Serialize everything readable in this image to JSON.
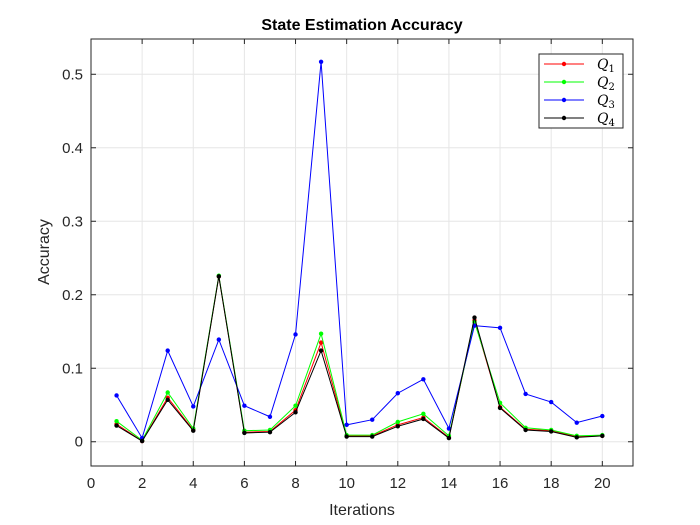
{
  "chart_data": {
    "type": "line",
    "title": "State Estimation Accuracy",
    "xlabel": "Iterations",
    "ylabel": "Accuracy",
    "xlim": [
      0,
      21.2
    ],
    "ylim": [
      -0.033,
      0.548
    ],
    "xticks": [
      0,
      2,
      4,
      6,
      8,
      10,
      12,
      14,
      16,
      18,
      20
    ],
    "yticks": [
      0,
      0.1,
      0.2,
      0.3,
      0.4,
      0.5
    ],
    "ytick_labels": [
      "0",
      "0.1",
      "0.2",
      "0.3",
      "0.4",
      "0.5"
    ],
    "grid": true,
    "legend_position": "top-right",
    "x": [
      1,
      2,
      3,
      4,
      5,
      6,
      7,
      8,
      9,
      10,
      11,
      12,
      13,
      14,
      15,
      16,
      17,
      18,
      19,
      20
    ],
    "series": [
      {
        "name": "Q",
        "subscript": "1",
        "color": "#ff0000",
        "values": [
          0.024,
          0.001,
          0.06,
          0.016,
          0.225,
          0.013,
          0.014,
          0.043,
          0.135,
          0.008,
          0.008,
          0.023,
          0.033,
          0.006,
          0.165,
          0.047,
          0.017,
          0.015,
          0.007,
          0.008
        ]
      },
      {
        "name": "Q",
        "subscript": "2",
        "color": "#00ff00",
        "values": [
          0.028,
          0.002,
          0.067,
          0.018,
          0.226,
          0.015,
          0.016,
          0.049,
          0.147,
          0.009,
          0.009,
          0.027,
          0.038,
          0.008,
          0.163,
          0.053,
          0.019,
          0.016,
          0.008,
          0.009
        ]
      },
      {
        "name": "Q",
        "subscript": "3",
        "color": "#0000ff",
        "values": [
          0.063,
          0.005,
          0.124,
          0.048,
          0.139,
          0.049,
          0.034,
          0.146,
          0.517,
          0.023,
          0.03,
          0.066,
          0.085,
          0.018,
          0.158,
          0.155,
          0.065,
          0.054,
          0.026,
          0.035
        ]
      },
      {
        "name": "Q",
        "subscript": "4",
        "color": "#000000",
        "values": [
          0.022,
          0.001,
          0.057,
          0.015,
          0.225,
          0.012,
          0.013,
          0.04,
          0.124,
          0.007,
          0.007,
          0.021,
          0.031,
          0.005,
          0.169,
          0.046,
          0.016,
          0.014,
          0.006,
          0.008
        ]
      }
    ]
  }
}
